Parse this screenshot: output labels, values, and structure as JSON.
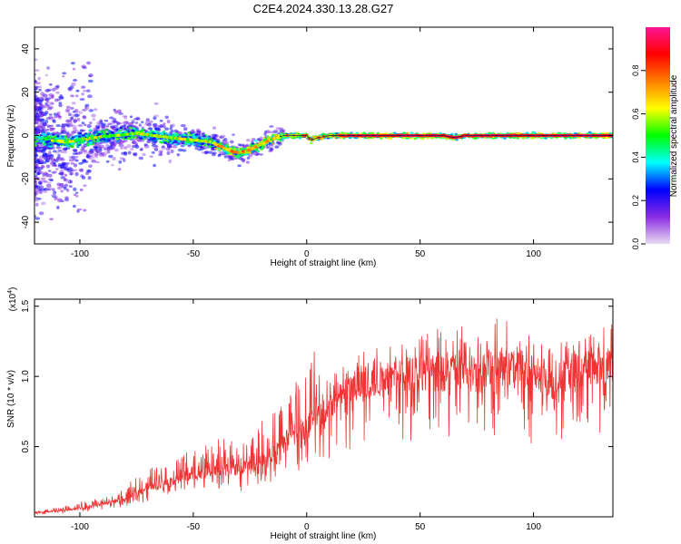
{
  "title": "C2E4.2024.330.13.28.G27",
  "chart_data": [
    {
      "type": "heatmap",
      "xlabel": "Height of straight line (km)",
      "ylabel": "Frequency (Hz)",
      "xlim": [
        -120,
        135
      ],
      "ylim": [
        -50,
        50
      ],
      "x_ticks": [
        -100,
        -50,
        0,
        50,
        100
      ],
      "y_ticks": [
        -40,
        -20,
        0,
        20,
        40
      ],
      "colorbar": {
        "label": "Normalized spectral amplitude",
        "range": [
          0.0,
          1.0
        ],
        "ticks": [
          0.0,
          0.2,
          0.4,
          0.6,
          0.8
        ],
        "colors": [
          "#e8dcf2",
          "#8a2be2",
          "#0000ff",
          "#00ffff",
          "#00ff00",
          "#ffff00",
          "#ff7f00",
          "#ff0000",
          "#ff1493"
        ]
      },
      "ridge": {
        "x": [
          -115,
          -105,
          -95,
          -85,
          -75,
          -68,
          -60,
          -50,
          -42,
          -38,
          -34,
          -30,
          -26,
          -22,
          -18,
          -14,
          -10,
          -5,
          0,
          2,
          5,
          10,
          20,
          40,
          60,
          65,
          70,
          90,
          110,
          133
        ],
        "y": [
          -2,
          -3,
          -1,
          0,
          1,
          0,
          -1,
          -2,
          -3,
          -5,
          -7,
          -8,
          -7,
          -5,
          -3,
          -1,
          0,
          0,
          0,
          -2,
          -1,
          0,
          0,
          0,
          0,
          -1,
          0,
          0,
          0,
          0
        ]
      }
    },
    {
      "type": "line",
      "xlabel": "Height of straight line (km)",
      "ylabel": "SNR (10 * v/v)",
      "y_multiplier": "(x10",
      "y_multiplier_exp": "4",
      "y_multiplier_close": ")",
      "xlim": [
        -120,
        135
      ],
      "ylim": [
        0,
        15500
      ],
      "x_ticks": [
        -100,
        -50,
        0,
        50,
        100
      ],
      "y_ticks": [
        5000,
        10000,
        15000
      ],
      "y_tick_labels": [
        "0.5",
        "1.0",
        "1.5"
      ],
      "color": "#ee3333",
      "series": [
        {
          "x": [
            -120,
            -110,
            -100,
            -90,
            -80,
            -75,
            -70,
            -60,
            -50,
            -40,
            -30,
            -20,
            -15,
            -10,
            -5,
            0,
            5,
            10,
            15,
            20,
            25,
            30,
            40,
            50,
            60,
            70,
            80,
            90,
            100,
            105,
            110,
            115,
            120,
            135
          ],
          "values": [
            300,
            450,
            700,
            1000,
            1400,
            1900,
            2300,
            2800,
            3300,
            3700,
            3800,
            4500,
            5000,
            6000,
            7000,
            7500,
            8000,
            8700,
            9500,
            10000,
            10600,
            10800,
            11200,
            11600,
            11400,
            11600,
            11800,
            11800,
            11500,
            11000,
            10500,
            11600,
            12000,
            12200
          ]
        }
      ]
    }
  ]
}
